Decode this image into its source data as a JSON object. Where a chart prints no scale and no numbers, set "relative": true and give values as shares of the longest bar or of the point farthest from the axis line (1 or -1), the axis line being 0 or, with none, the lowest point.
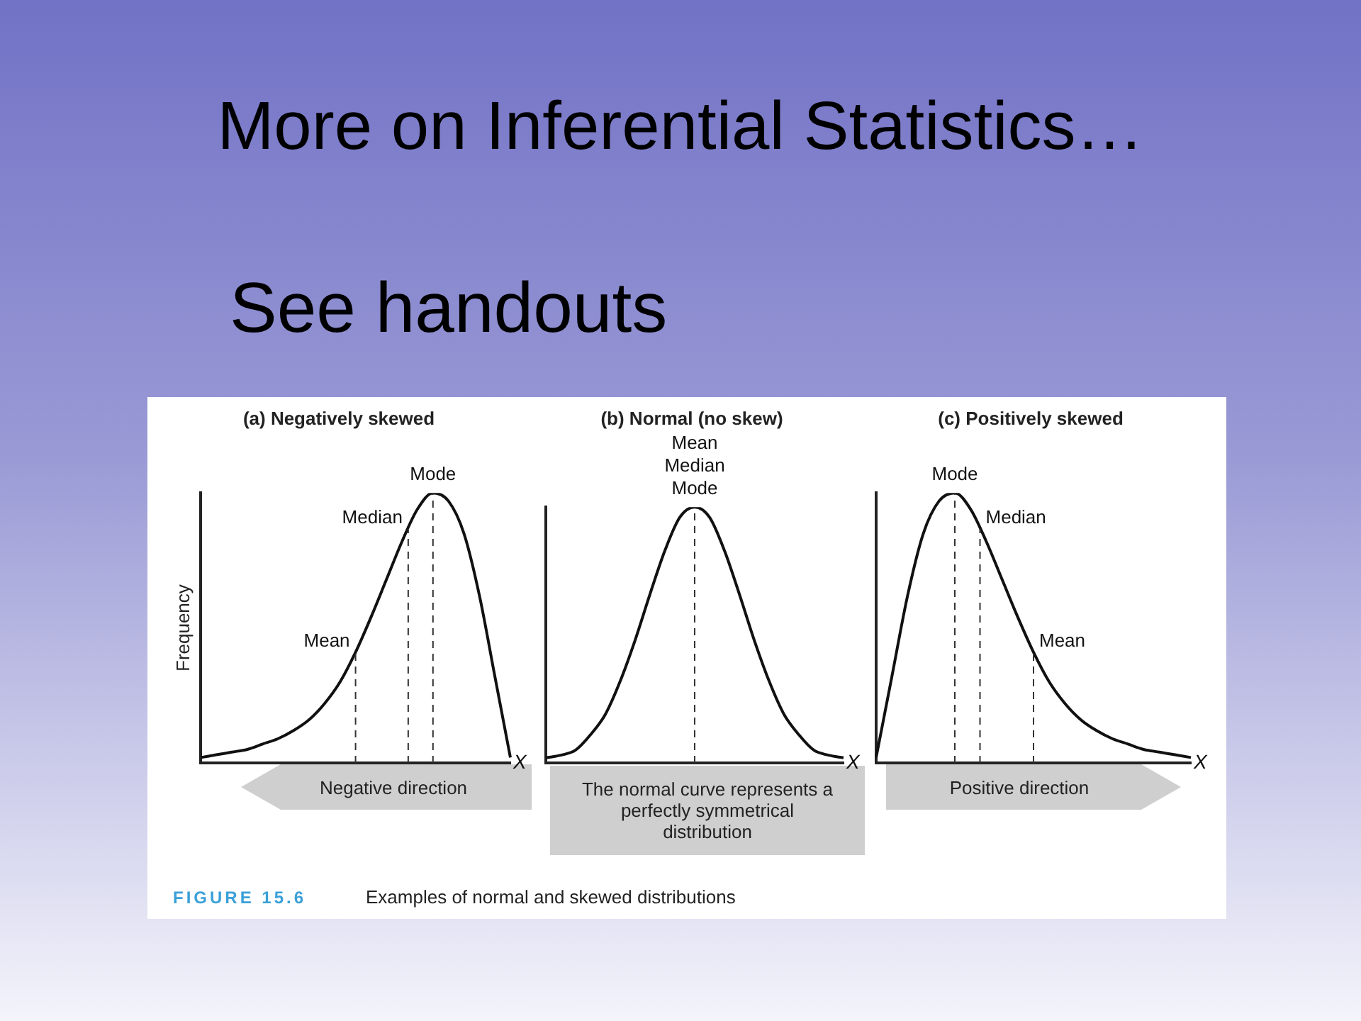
{
  "chart_data": [
    {
      "type": "line",
      "relative": true,
      "title": "(a) Negatively skewed",
      "ylabel": "Frequency",
      "xlabel": "X",
      "categories": [
        null,
        null,
        null,
        null,
        null,
        null,
        null,
        null,
        null,
        null,
        null,
        null,
        null,
        null,
        null,
        null,
        null,
        null,
        null,
        null,
        null
      ],
      "series": [
        {
          "color": "#111111",
          "values": [
            0.02,
            0.03,
            0.04,
            0.05,
            0.07,
            0.09,
            0.12,
            0.16,
            0.22,
            0.3,
            0.41,
            0.54,
            0.68,
            0.82,
            0.94,
            1,
            0.97,
            0.85,
            0.62,
            0.32,
            0.02
          ]
        }
      ],
      "marker": "none",
      "grid": false,
      "legend": false,
      "annotations": [
        "More on Inferential Statistics…",
        "See handouts",
        "Negative direction",
        "FIGURE 15.6",
        "Examples of normal and skewed distributions",
        "Mode",
        "Median",
        "Mean"
      ]
    },
    {
      "type": "line",
      "relative": true,
      "title": "(b) Normal (no skew)",
      "xlabel": "X",
      "categories": [
        null,
        null,
        null,
        null,
        null,
        null,
        null,
        null,
        null,
        null,
        null,
        null,
        null,
        null,
        null,
        null,
        null,
        null,
        null,
        null,
        null
      ],
      "series": [
        {
          "color": "#111111",
          "values": [
            0.02,
            0.03,
            0.05,
            0.11,
            0.19,
            0.32,
            0.48,
            0.66,
            0.83,
            0.96,
            1,
            0.96,
            0.83,
            0.66,
            0.48,
            0.32,
            0.19,
            0.11,
            0.05,
            0.03,
            0.02
          ]
        }
      ],
      "marker": "none",
      "grid": false,
      "legend": false,
      "annotations": [
        "The normal curve represents a perfectly symmetrical distribution",
        "Mean\nMedian\nMode"
      ]
    },
    {
      "type": "line",
      "relative": true,
      "title": "(c) Positively skewed",
      "xlabel": "X",
      "categories": [
        null,
        null,
        null,
        null,
        null,
        null,
        null,
        null,
        null,
        null,
        null,
        null,
        null,
        null,
        null,
        null,
        null,
        null,
        null,
        null,
        null
      ],
      "series": [
        {
          "color": "#111111",
          "values": [
            0.02,
            0.32,
            0.62,
            0.85,
            0.97,
            1,
            0.94,
            0.82,
            0.68,
            0.54,
            0.41,
            0.3,
            0.22,
            0.16,
            0.12,
            0.09,
            0.07,
            0.05,
            0.04,
            0.03,
            0.02
          ]
        }
      ],
      "marker": "none",
      "grid": false,
      "legend": false,
      "annotations": [
        "Positive direction",
        "Mode",
        "Median",
        "Mean"
      ]
    }
  ]
}
